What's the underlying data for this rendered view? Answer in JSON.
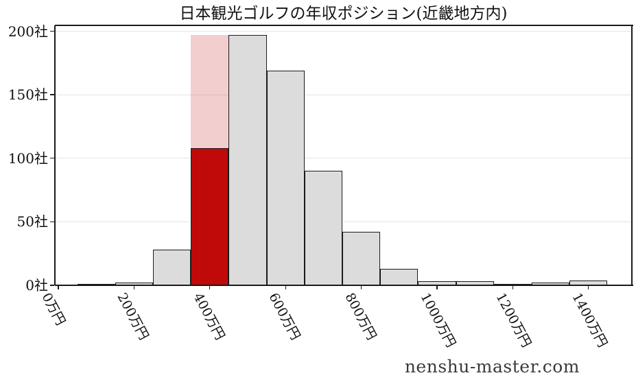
{
  "title": "日本観光ゴルフの年収ポジション(近畿地方内)",
  "watermark": "nenshu-master.com",
  "chart_data": {
    "type": "bar",
    "subtype": "histogram",
    "title": "日本観光ゴルフの年収ポジション(近畿地方内)",
    "xlabel": "",
    "ylabel": "",
    "x_unit": "万円",
    "y_unit": "社",
    "grid": "horizontal",
    "legend": "none",
    "bin_width": 100,
    "ylim": [
      0,
      204
    ],
    "xlim": [
      -10,
      1515
    ],
    "bins": [
      {
        "start": 50,
        "end": 150,
        "count": 1
      },
      {
        "start": 150,
        "end": 250,
        "count": 2
      },
      {
        "start": 250,
        "end": 350,
        "count": 28
      },
      {
        "start": 350,
        "end": 450,
        "count": 197,
        "highlight": true,
        "highlight_count": 108
      },
      {
        "start": 450,
        "end": 550,
        "count": 197
      },
      {
        "start": 550,
        "end": 650,
        "count": 169
      },
      {
        "start": 650,
        "end": 750,
        "count": 90
      },
      {
        "start": 750,
        "end": 850,
        "count": 42
      },
      {
        "start": 850,
        "end": 950,
        "count": 13
      },
      {
        "start": 950,
        "end": 1050,
        "count": 3
      },
      {
        "start": 1050,
        "end": 1150,
        "count": 3
      },
      {
        "start": 1150,
        "end": 1250,
        "count": 1
      },
      {
        "start": 1250,
        "end": 1350,
        "count": 2
      },
      {
        "start": 1350,
        "end": 1450,
        "count": 4
      }
    ],
    "x_ticks": [
      {
        "value": 0,
        "label": "0万円"
      },
      {
        "value": 200,
        "label": "200万円"
      },
      {
        "value": 400,
        "label": "400万円"
      },
      {
        "value": 600,
        "label": "600万円"
      },
      {
        "value": 800,
        "label": "800万円"
      },
      {
        "value": 1000,
        "label": "1000万円"
      },
      {
        "value": 1200,
        "label": "1200万円"
      },
      {
        "value": 1400,
        "label": "1400万円"
      }
    ],
    "y_ticks": [
      {
        "value": 0,
        "label": "0社"
      },
      {
        "value": 50,
        "label": "50社"
      },
      {
        "value": 100,
        "label": "100社"
      },
      {
        "value": 150,
        "label": "150社"
      },
      {
        "value": 200,
        "label": "200社"
      }
    ],
    "colors": {
      "bar_fill": "#dcdcdc",
      "bar_edge": "#1a1a1a",
      "highlight_red": "#c00a0a",
      "highlight_pink": "#f2cece",
      "gridline": "#e4e4e4",
      "axis": "#1a1a1a"
    }
  }
}
